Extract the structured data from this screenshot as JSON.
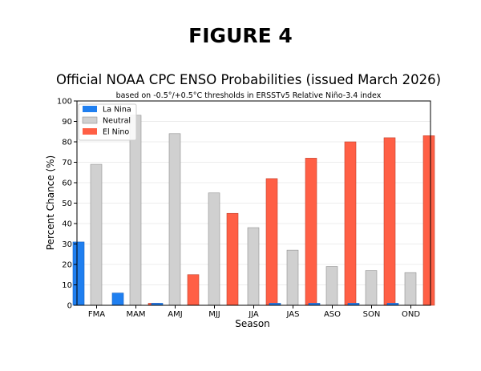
{
  "figure_heading": "FIGURE 4",
  "chart_data": {
    "type": "bar",
    "title": "Official NOAA CPC ENSO Probabilities (issued March 2026)",
    "subtitle": "based on -0.5°/+0.5°C thresholds in ERSSTv5 Relative Niño-3.4 index",
    "xlabel": "Season",
    "ylabel": "Percent Chance (%)",
    "ylim": [
      0,
      100
    ],
    "yticks": [
      0,
      10,
      20,
      30,
      40,
      50,
      60,
      70,
      80,
      90,
      100
    ],
    "grid": true,
    "legend_position": "top-left",
    "categories": [
      "FMA",
      "MAM",
      "AMJ",
      "MJJ",
      "JJA",
      "JAS",
      "ASO",
      "SON",
      "OND"
    ],
    "series": [
      {
        "name": "La Nina",
        "color": "#1f7ff0",
        "values": [
          31,
          6,
          1,
          0,
          0,
          1,
          1,
          1,
          1
        ]
      },
      {
        "name": "Neutral",
        "color": "#d0d0d0",
        "values": [
          69,
          93,
          84,
          55,
          38,
          27,
          19,
          17,
          16
        ]
      },
      {
        "name": "El Nino",
        "color": "#ff5f45",
        "values": [
          0,
          1,
          15,
          45,
          62,
          72,
          80,
          82,
          83
        ]
      }
    ]
  }
}
